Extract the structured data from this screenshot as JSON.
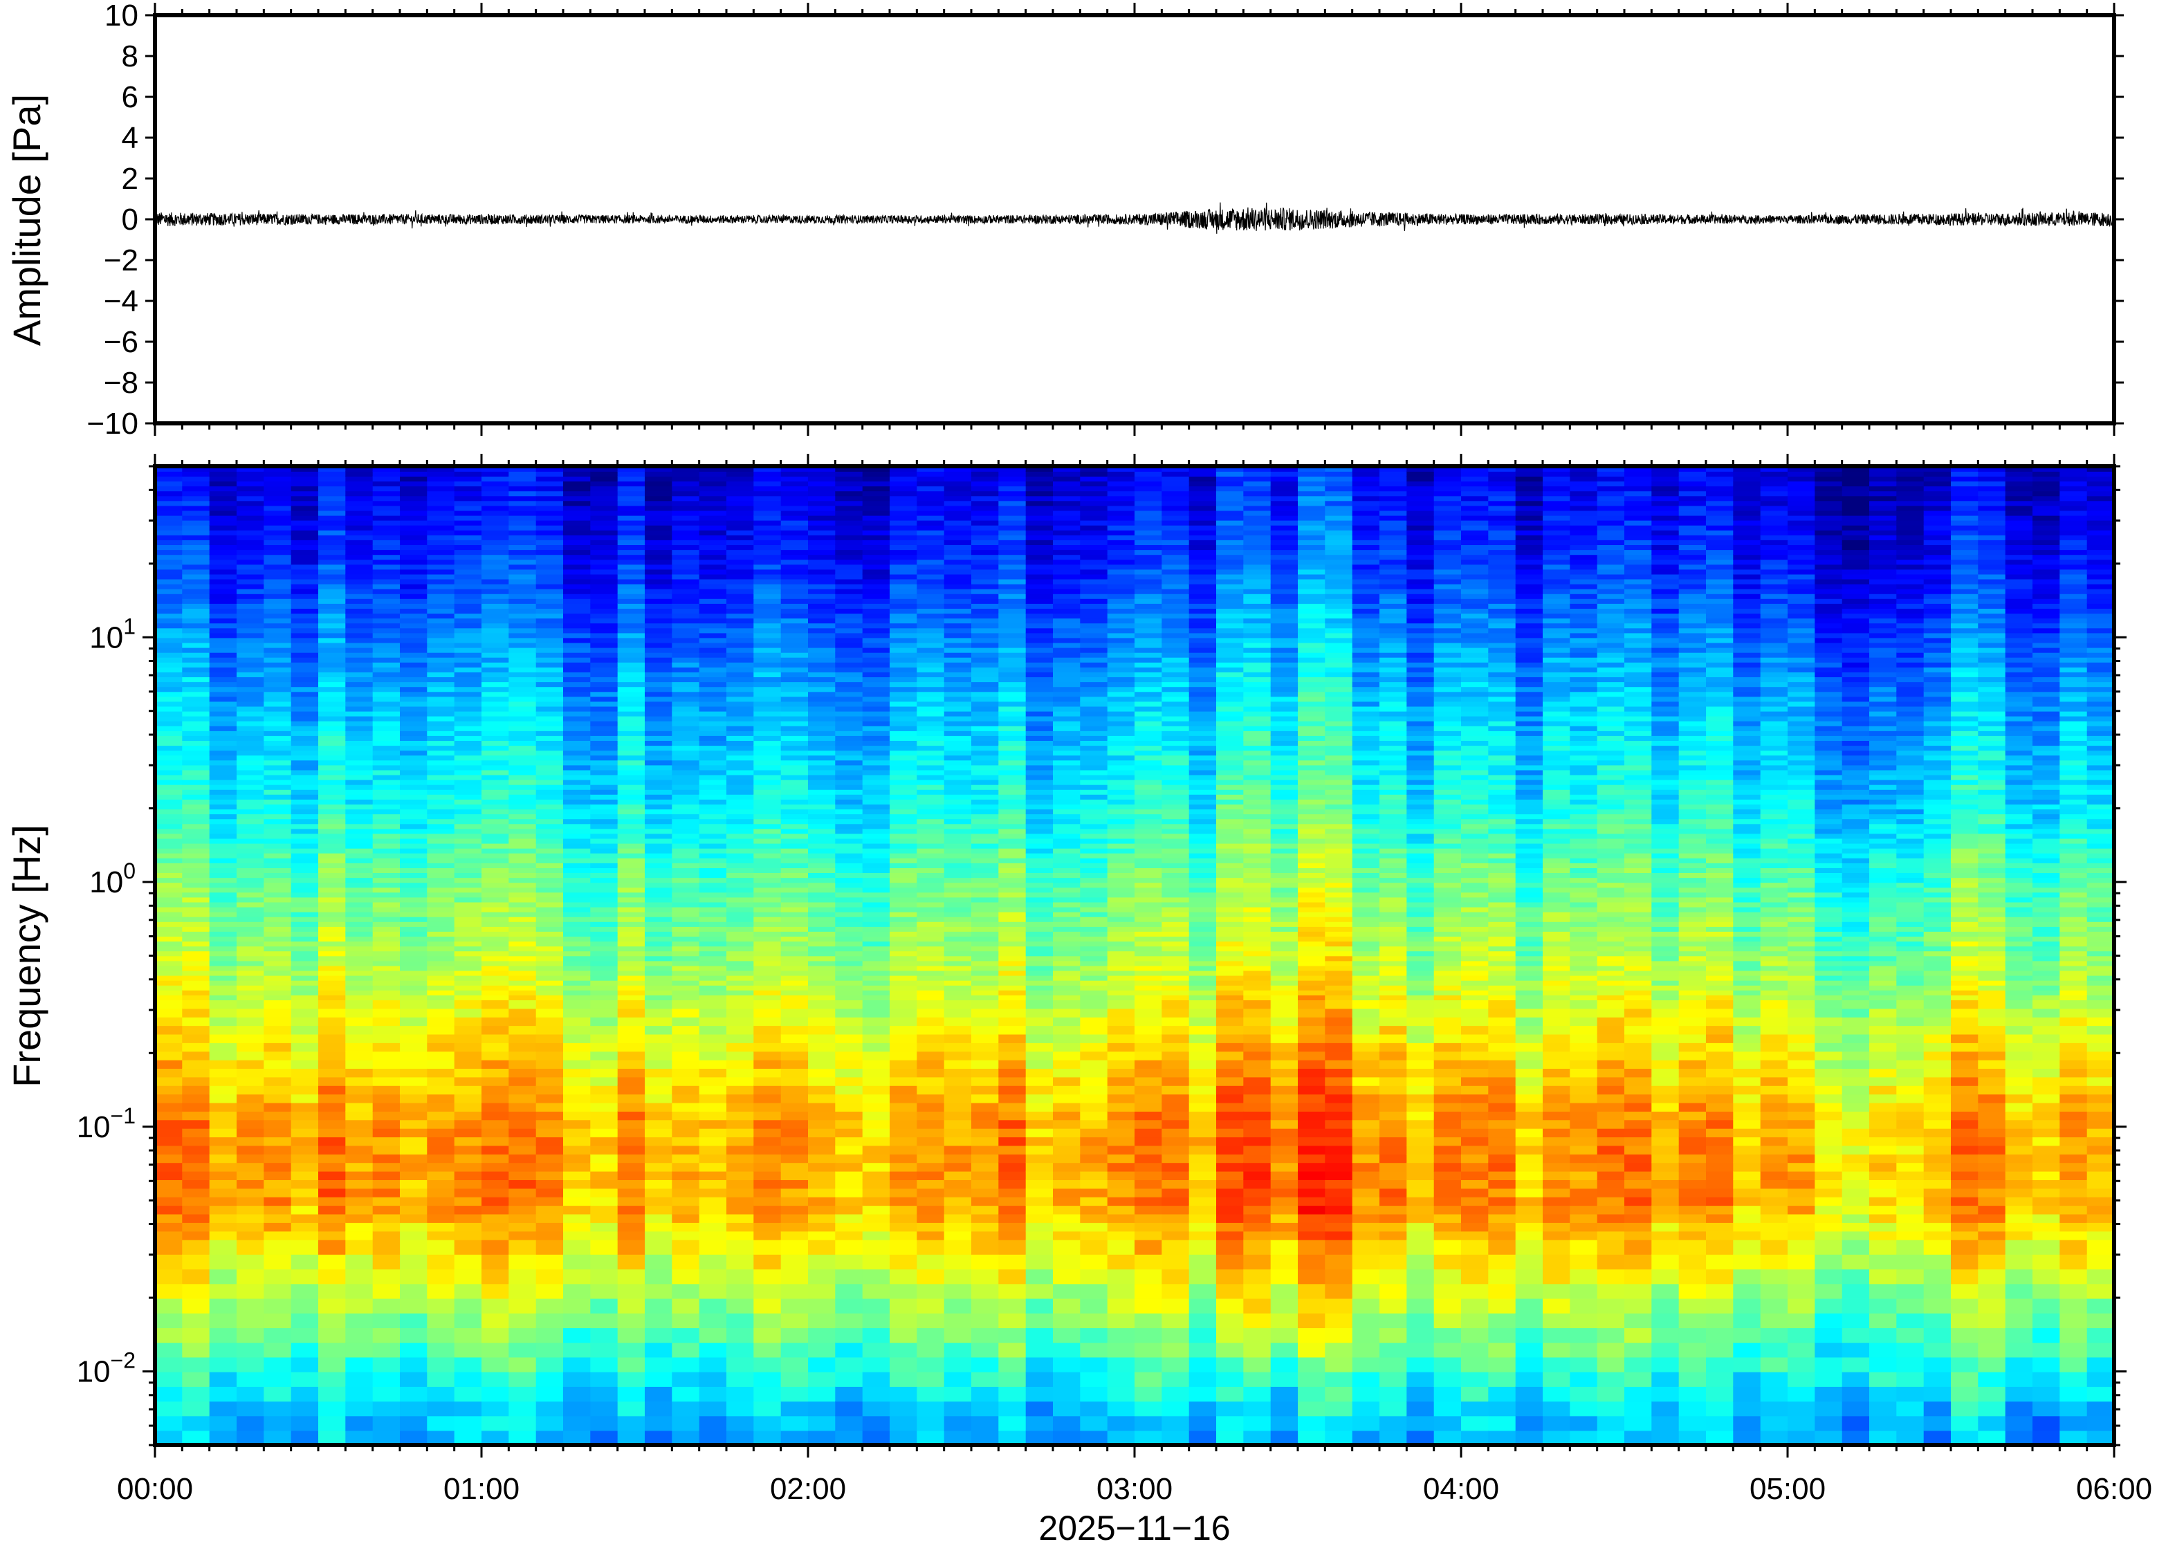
{
  "chart_data": [
    {
      "type": "line",
      "ylabel": "Amplitude [Pa]",
      "ylim": [
        -10,
        10
      ],
      "yticks": [
        "10",
        "8",
        "6",
        "4",
        "2",
        "0",
        "−2",
        "−4",
        "−6",
        "−8",
        "−10"
      ],
      "xlim": [
        "00:00",
        "06:00"
      ],
      "grid": false,
      "series": [
        {
          "color": "#000000",
          "x": [
            "00:00",
            "00:30",
            "01:00",
            "01:30",
            "02:00",
            "02:30",
            "03:00",
            "03:20",
            "03:30",
            "03:40",
            "04:00",
            "04:30",
            "05:00",
            "05:30",
            "06:00"
          ],
          "y_envelope": [
            0.35,
            0.25,
            0.25,
            0.2,
            0.2,
            0.2,
            0.25,
            0.6,
            0.55,
            0.4,
            0.25,
            0.25,
            0.2,
            0.3,
            0.35
          ]
        }
      ]
    },
    {
      "type": "heatmap",
      "ylabel": "Frequency [Hz]",
      "yscale": "log",
      "ylim": [
        0.005,
        50
      ],
      "yticks": [
        {
          "base": "10",
          "exp": "1",
          "value": 10
        },
        {
          "base": "10",
          "exp": "0",
          "value": 1
        },
        {
          "base": "10",
          "exp": "−1",
          "value": 0.1
        },
        {
          "base": "10",
          "exp": "−2",
          "value": 0.01
        }
      ],
      "xlim": [
        "00:00",
        "06:00"
      ],
      "xticks": [
        "00:00",
        "01:00",
        "02:00",
        "03:00",
        "04:00",
        "05:00",
        "06:00"
      ],
      "xlabel": "2025−11−16",
      "colormap": "jet",
      "grid": false,
      "intensity_profile": {
        "freq_hz": [
          0.006,
          0.008,
          0.012,
          0.02,
          0.03,
          0.05,
          0.1,
          0.2,
          0.5,
          1,
          2,
          5,
          10,
          20,
          50
        ],
        "level": [
          0.3,
          0.36,
          0.45,
          0.55,
          0.63,
          0.72,
          0.72,
          0.64,
          0.53,
          0.47,
          0.38,
          0.31,
          0.24,
          0.16,
          0.09
        ]
      },
      "time_bright_bands": [
        {
          "start": "03:15",
          "end": "03:40",
          "boost": 0.08
        },
        {
          "start": "05:05",
          "end": "05:25",
          "boost": -0.1
        }
      ]
    }
  ]
}
